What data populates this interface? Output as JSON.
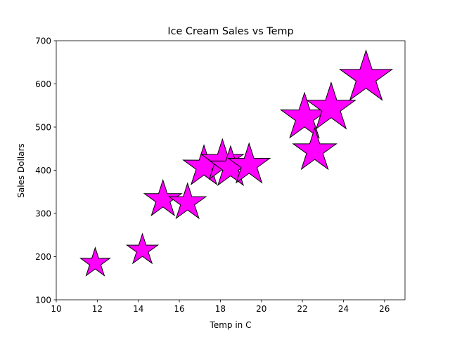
{
  "chart_data": {
    "type": "scatter",
    "title": "Ice Cream Sales vs Temp",
    "xlabel": "Temp in C",
    "ylabel": "Sales Dollars",
    "xlim": [
      10,
      27
    ],
    "ylim": [
      100,
      700
    ],
    "xticks": [
      10,
      12,
      14,
      16,
      18,
      20,
      22,
      24,
      26
    ],
    "yticks": [
      100,
      200,
      300,
      400,
      500,
      600,
      700
    ],
    "grid": false,
    "marker": "star",
    "marker_color": "#ff00ff",
    "marker_edge_color": "#000000",
    "points": [
      {
        "x": 11.9,
        "y": 185
      },
      {
        "x": 14.2,
        "y": 215
      },
      {
        "x": 15.2,
        "y": 332
      },
      {
        "x": 16.4,
        "y": 325
      },
      {
        "x": 17.2,
        "y": 408
      },
      {
        "x": 18.1,
        "y": 421
      },
      {
        "x": 18.5,
        "y": 406
      },
      {
        "x": 19.4,
        "y": 412
      },
      {
        "x": 22.1,
        "y": 522
      },
      {
        "x": 22.6,
        "y": 445
      },
      {
        "x": 23.4,
        "y": 544
      },
      {
        "x": 25.1,
        "y": 614
      }
    ]
  }
}
